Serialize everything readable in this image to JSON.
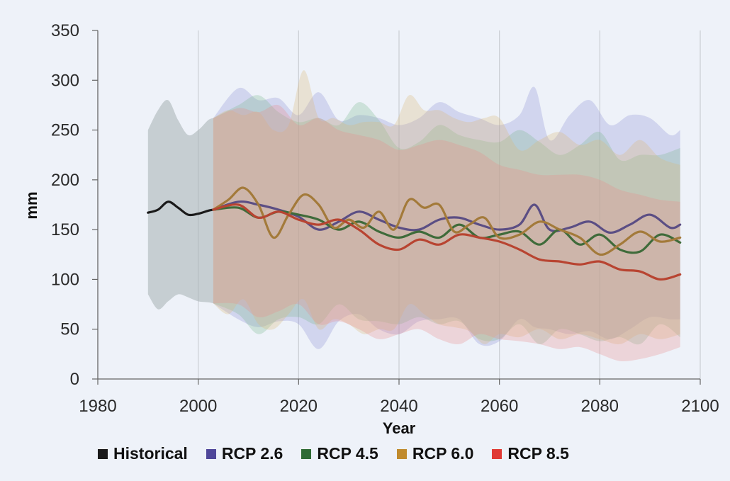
{
  "chart_data": {
    "type": "line",
    "title": "",
    "xlabel": "Year",
    "ylabel": "mm",
    "xlim": [
      1980,
      2100
    ],
    "ylim": [
      0,
      350
    ],
    "x_ticks": [
      "1980",
      "2000",
      "2020",
      "2040",
      "2060",
      "2080",
      "2100"
    ],
    "y_ticks": [
      "0",
      "50",
      "100",
      "150",
      "200",
      "250",
      "300",
      "350"
    ],
    "grid": "vertical",
    "legend_position": "bottom",
    "series": [
      {
        "name": "Historical",
        "color": "#1a1a1a",
        "band_color": "#a6b0b2",
        "x": [
          1990,
          1992,
          1994,
          1996,
          1998,
          2000,
          2002,
          2003
        ],
        "y": [
          167,
          170,
          178,
          172,
          165,
          166,
          169,
          170
        ],
        "band_upper": [
          250,
          270,
          280,
          260,
          245,
          250,
          260,
          262
        ],
        "band_lower": [
          85,
          70,
          78,
          85,
          82,
          78,
          77,
          76
        ]
      },
      {
        "name": "RCP 2.6",
        "color": "#5b4e84",
        "band_color": "#8f92d4",
        "x": [
          2003,
          2008,
          2012,
          2016,
          2020,
          2024,
          2028,
          2032,
          2036,
          2040,
          2044,
          2048,
          2052,
          2056,
          2060,
          2064,
          2067,
          2070,
          2074,
          2078,
          2082,
          2086,
          2090,
          2094,
          2096
        ],
        "y": [
          170,
          178,
          175,
          170,
          163,
          150,
          158,
          168,
          160,
          152,
          150,
          160,
          162,
          155,
          150,
          155,
          175,
          150,
          152,
          158,
          147,
          155,
          165,
          152,
          155
        ],
        "band_upper": [
          262,
          292,
          280,
          282,
          265,
          288,
          260,
          265,
          262,
          255,
          262,
          278,
          268,
          262,
          255,
          265,
          293,
          240,
          265,
          280,
          255,
          265,
          262,
          245,
          250
        ],
        "band_lower": [
          76,
          60,
          52,
          58,
          55,
          30,
          58,
          65,
          50,
          45,
          58,
          60,
          60,
          35,
          38,
          60,
          52,
          50,
          45,
          48,
          40,
          50,
          62,
          60,
          60
        ]
      },
      {
        "name": "RCP 4.5",
        "color": "#3f6b3a",
        "band_color": "#7db891",
        "x": [
          2003,
          2008,
          2012,
          2016,
          2020,
          2024,
          2028,
          2032,
          2036,
          2040,
          2044,
          2048,
          2052,
          2056,
          2060,
          2064,
          2068,
          2072,
          2076,
          2080,
          2084,
          2088,
          2092,
          2096
        ],
        "y": [
          170,
          172,
          162,
          168,
          165,
          160,
          150,
          158,
          148,
          142,
          148,
          142,
          155,
          142,
          145,
          148,
          135,
          150,
          135,
          145,
          130,
          128,
          145,
          137
        ],
        "band_upper": [
          262,
          275,
          285,
          268,
          258,
          262,
          255,
          278,
          260,
          232,
          238,
          255,
          245,
          240,
          238,
          250,
          238,
          225,
          235,
          248,
          220,
          225,
          225,
          232
        ],
        "band_lower": [
          76,
          65,
          45,
          60,
          62,
          55,
          75,
          60,
          58,
          55,
          62,
          55,
          58,
          40,
          40,
          55,
          35,
          50,
          45,
          38,
          42,
          35,
          55,
          42
        ]
      },
      {
        "name": "RCP 6.0",
        "color": "#a37a3a",
        "band_color": "#d9b87a",
        "x": [
          2003,
          2006,
          2009,
          2012,
          2015,
          2018,
          2021,
          2024,
          2027,
          2030,
          2033,
          2036,
          2039,
          2042,
          2045,
          2048,
          2051,
          2054,
          2057,
          2060,
          2064,
          2068,
          2072,
          2076,
          2080,
          2084,
          2088,
          2092,
          2096
        ],
        "y": [
          170,
          180,
          192,
          175,
          142,
          165,
          185,
          175,
          152,
          160,
          152,
          168,
          150,
          180,
          172,
          175,
          148,
          155,
          162,
          142,
          145,
          158,
          150,
          142,
          125,
          135,
          148,
          138,
          142
        ],
        "band_upper": [
          262,
          270,
          265,
          268,
          250,
          255,
          310,
          262,
          262,
          255,
          258,
          258,
          255,
          285,
          270,
          270,
          262,
          258,
          262,
          262,
          230,
          240,
          248,
          235,
          240,
          225,
          240,
          222,
          215
        ],
        "band_lower": [
          76,
          65,
          80,
          55,
          50,
          65,
          80,
          50,
          60,
          55,
          45,
          50,
          50,
          75,
          65,
          55,
          52,
          48,
          35,
          45,
          42,
          50,
          40,
          45,
          40,
          35,
          45,
          40,
          45
        ]
      },
      {
        "name": "RCP 8.5",
        "color": "#b84431",
        "band_color": "#e88d8d",
        "x": [
          2003,
          2008,
          2012,
          2016,
          2020,
          2024,
          2028,
          2032,
          2036,
          2040,
          2044,
          2048,
          2052,
          2056,
          2060,
          2064,
          2068,
          2072,
          2076,
          2080,
          2084,
          2088,
          2092,
          2096
        ],
        "y": [
          170,
          175,
          162,
          168,
          160,
          155,
          160,
          150,
          135,
          130,
          140,
          135,
          145,
          142,
          138,
          130,
          120,
          118,
          115,
          118,
          110,
          108,
          100,
          105
        ],
        "band_upper": [
          262,
          272,
          268,
          275,
          255,
          262,
          250,
          245,
          240,
          230,
          235,
          240,
          235,
          228,
          215,
          210,
          205,
          205,
          205,
          200,
          190,
          185,
          180,
          178
        ],
        "band_lower": [
          76,
          75,
          62,
          68,
          75,
          55,
          58,
          50,
          40,
          45,
          50,
          40,
          35,
          45,
          40,
          38,
          35,
          30,
          32,
          25,
          18,
          20,
          25,
          32
        ]
      }
    ]
  }
}
